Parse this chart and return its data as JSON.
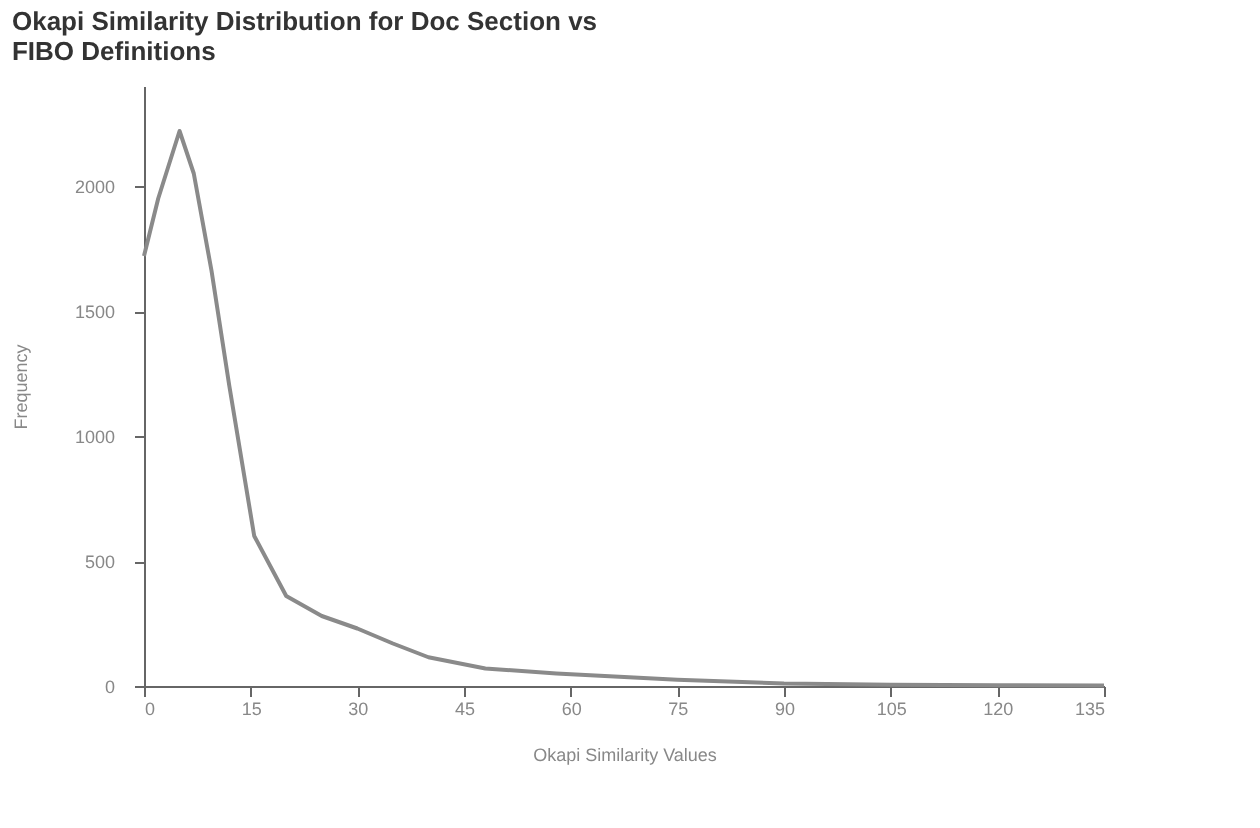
{
  "chart_data": {
    "type": "line",
    "title": "Okapi Similarity Distribution for Doc Section vs FIBO Definitions",
    "xlabel": "Okapi Similarity Values",
    "ylabel": "Frequency",
    "series": [
      {
        "color": "#8a8a8a",
        "x": [
          0,
          2,
          5,
          7,
          9.5,
          12,
          15.5,
          20,
          25,
          30,
          35,
          40,
          48,
          58,
          75,
          90,
          105,
          120,
          135
        ],
        "values": [
          1720,
          1950,
          2220,
          2050,
          1660,
          1200,
          600,
          360,
          280,
          230,
          170,
          115,
          70,
          50,
          25,
          10,
          5,
          3,
          2
        ]
      }
    ],
    "xlim": [
      0,
      135
    ],
    "xticks": [
      0,
      15,
      30,
      45,
      60,
      75,
      90,
      105,
      120,
      135
    ],
    "ylim": [
      0,
      2400
    ],
    "yticks": [
      0,
      500,
      1000,
      1500,
      2000
    ],
    "grid": false,
    "marker": "none",
    "line_style": "solid"
  }
}
